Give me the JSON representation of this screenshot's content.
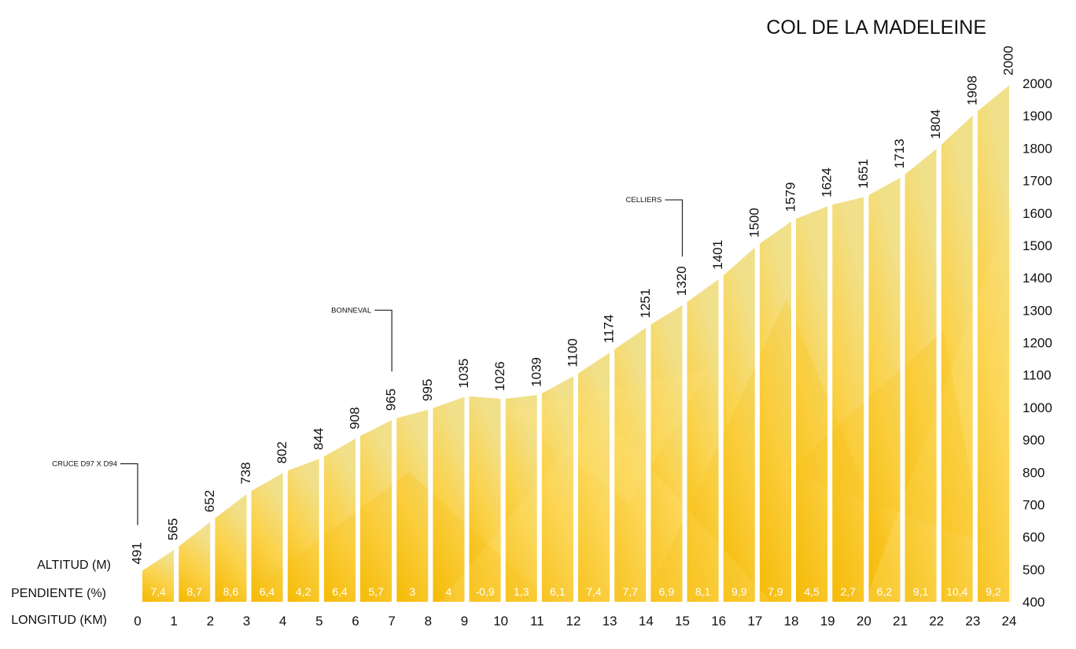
{
  "chart_data": {
    "type": "area",
    "title": "COL DE LA MADELEINE",
    "altitude_label": "ALTITUD (M)",
    "gradient_label": "PENDIENTE (%)",
    "distance_label": "LONGITUD (KM)",
    "x": [
      0,
      1,
      2,
      3,
      4,
      5,
      6,
      7,
      8,
      9,
      10,
      11,
      12,
      13,
      14,
      15,
      16,
      17,
      18,
      19,
      20,
      21,
      22,
      23,
      24
    ],
    "altitude": [
      491,
      565,
      652,
      738,
      802,
      844,
      908,
      965,
      995,
      1035,
      1026,
      1039,
      1100,
      1174,
      1251,
      1320,
      1401,
      1500,
      1579,
      1624,
      1651,
      1713,
      1804,
      1908,
      2000
    ],
    "gradient": [
      "7,4",
      "8,7",
      "8,6",
      "6,4",
      "4,2",
      "6,4",
      "5,7",
      "3",
      "4",
      "-0,9",
      "1,3",
      "6,1",
      "7,4",
      "7,7",
      "6,9",
      "8,1",
      "9,9",
      "7,9",
      "4,5",
      "2,7",
      "6,2",
      "9,1",
      "10,4",
      "9,2"
    ],
    "y_ticks": [
      400,
      500,
      600,
      700,
      800,
      900,
      1000,
      1100,
      1200,
      1300,
      1400,
      1500,
      1600,
      1700,
      1800,
      1900,
      2000
    ],
    "ylim": [
      400,
      2000
    ],
    "xlim": [
      0,
      24
    ],
    "places": [
      {
        "name": "CRUCE D97 X D94",
        "km": 0
      },
      {
        "name": "BONNEVAL",
        "km": 7
      },
      {
        "name": "CELLIERS",
        "km": 15
      }
    ],
    "colors": {
      "low": "#f5b800",
      "mid": "#fbd24a",
      "high": "#f1e08a",
      "separator": "#ffffff"
    }
  }
}
